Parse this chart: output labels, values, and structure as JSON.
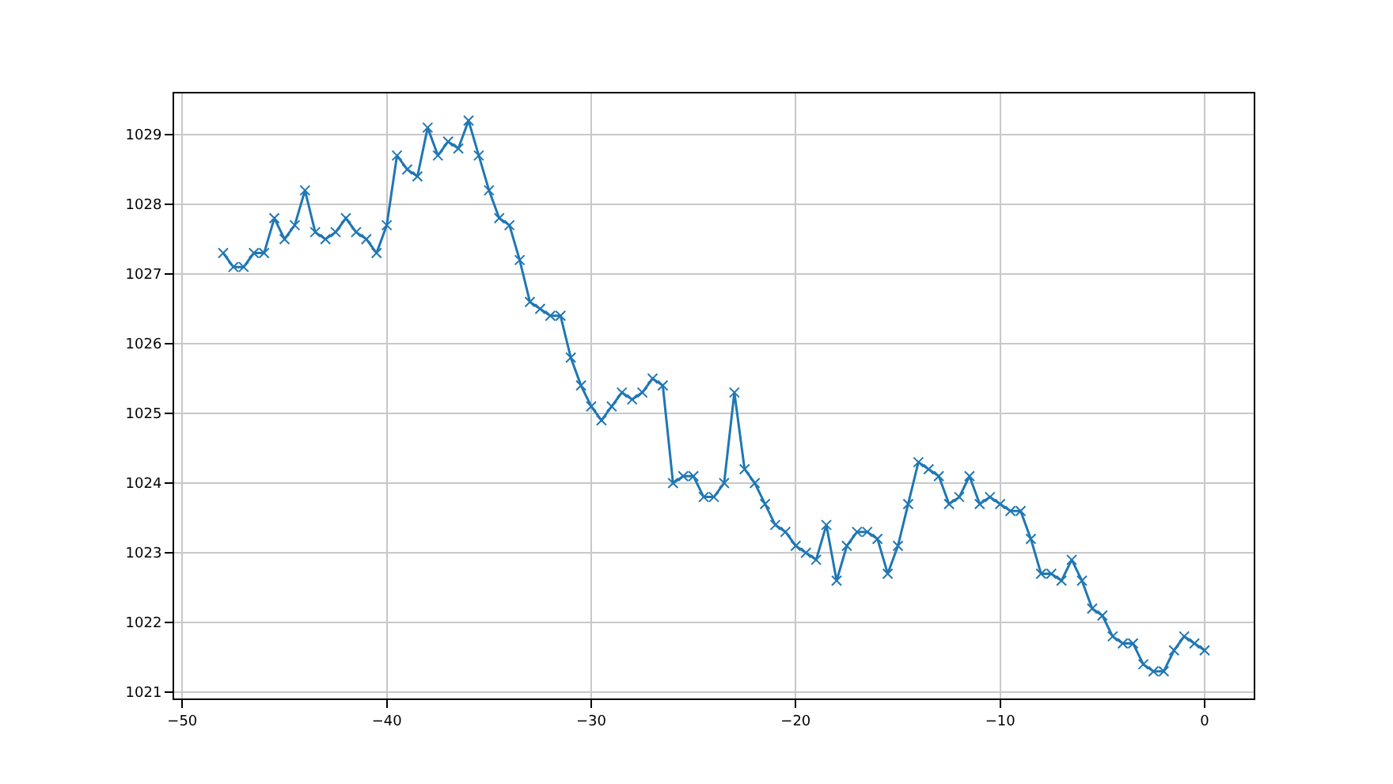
{
  "chart_data": {
    "type": "line",
    "x": [
      -48,
      -47.5,
      -47,
      -46.5,
      -46,
      -45.5,
      -45,
      -44.5,
      -44,
      -43.5,
      -43,
      -42.5,
      -42,
      -41.5,
      -41,
      -40.5,
      -40,
      -39.5,
      -39,
      -38.5,
      -38,
      -37.5,
      -37,
      -36.5,
      -36,
      -35.5,
      -35,
      -34.5,
      -34,
      -33.5,
      -33,
      -32.5,
      -32,
      -31.5,
      -31,
      -30.5,
      -30,
      -29.5,
      -29,
      -28.5,
      -28,
      -27.5,
      -27,
      -26.5,
      -26,
      -25.5,
      -25,
      -24.5,
      -24,
      -23.5,
      -23,
      -22.5,
      -22,
      -21.5,
      -21,
      -20.5,
      -20,
      -19.5,
      -19,
      -18.5,
      -18,
      -17.5,
      -17,
      -16.5,
      -16,
      -15.5,
      -15,
      -14.5,
      -14,
      -13.5,
      -13,
      -12.5,
      -12,
      -11.5,
      -11,
      -10.5,
      -10,
      -9.5,
      -9,
      -8.5,
      -8,
      -7.5,
      -7,
      -6.5,
      -6,
      -5.5,
      -5,
      -4.5,
      -4,
      -3.5,
      -3,
      -2.5,
      -2,
      -1.5,
      -1,
      -0.5,
      0
    ],
    "series": [
      {
        "color": "#1f77b4",
        "values": [
          1027.3,
          1027.1,
          1027.1,
          1027.3,
          1027.3,
          1027.8,
          1027.5,
          1027.7,
          1028.2,
          1027.6,
          1027.5,
          1027.6,
          1027.8,
          1027.6,
          1027.5,
          1027.3,
          1027.7,
          1028.7,
          1028.5,
          1028.4,
          1029.1,
          1028.7,
          1028.9,
          1028.8,
          1029.2,
          1028.7,
          1028.2,
          1027.8,
          1027.7,
          1027.2,
          1026.6,
          1026.5,
          1026.4,
          1026.4,
          1025.8,
          1025.4,
          1025.1,
          1024.9,
          1025.1,
          1025.3,
          1025.2,
          1025.3,
          1025.5,
          1025.4,
          1024.0,
          1024.1,
          1024.1,
          1023.8,
          1023.8,
          1024.0,
          1025.3,
          1024.2,
          1024.0,
          1023.7,
          1023.4,
          1023.3,
          1023.1,
          1023.0,
          1022.9,
          1023.4,
          1022.6,
          1023.1,
          1023.3,
          1023.3,
          1023.2,
          1022.7,
          1023.1,
          1023.7,
          1024.3,
          1024.2,
          1024.1,
          1023.7,
          1023.8,
          1024.1,
          1023.7,
          1023.8,
          1023.7,
          1023.6,
          1023.6,
          1023.2,
          1022.7,
          1022.7,
          1022.6,
          1022.9,
          1022.6,
          1022.2,
          1022.1,
          1021.8,
          1021.7,
          1021.7,
          1021.4,
          1021.3,
          1021.3,
          1021.6,
          1021.8,
          1021.7,
          1021.6
        ]
      }
    ],
    "xlim": [
      -50.4,
      2.4
    ],
    "xticks": [
      {
        "value": -50,
        "label": "−50"
      },
      {
        "value": -40,
        "label": "−40"
      },
      {
        "value": -30,
        "label": "−30"
      },
      {
        "value": -20,
        "label": "−20"
      },
      {
        "value": -10,
        "label": "−10"
      },
      0
    ],
    "ylim": [
      1020.91,
      1029.59
    ],
    "yticks": [
      1021,
      1022,
      1023,
      1024,
      1025,
      1026,
      1027,
      1028,
      1029
    ],
    "grid": true,
    "marker": "cross",
    "line_style": "solid"
  }
}
